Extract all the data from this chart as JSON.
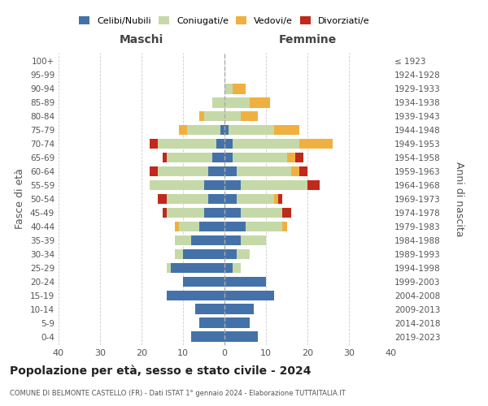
{
  "age_groups": [
    "0-4",
    "5-9",
    "10-14",
    "15-19",
    "20-24",
    "25-29",
    "30-34",
    "35-39",
    "40-44",
    "45-49",
    "50-54",
    "55-59",
    "60-64",
    "65-69",
    "70-74",
    "75-79",
    "80-84",
    "85-89",
    "90-94",
    "95-99",
    "100+"
  ],
  "birth_years": [
    "2019-2023",
    "2014-2018",
    "2009-2013",
    "2004-2008",
    "1999-2003",
    "1994-1998",
    "1989-1993",
    "1984-1988",
    "1979-1983",
    "1974-1978",
    "1969-1973",
    "1964-1968",
    "1959-1963",
    "1954-1958",
    "1949-1953",
    "1944-1948",
    "1939-1943",
    "1934-1938",
    "1929-1933",
    "1924-1928",
    "≤ 1923"
  ],
  "maschi": {
    "celibi": [
      8,
      6,
      7,
      14,
      10,
      13,
      10,
      8,
      6,
      5,
      4,
      5,
      4,
      3,
      2,
      1,
      0,
      0,
      0,
      0,
      0
    ],
    "coniugati": [
      0,
      0,
      0,
      0,
      0,
      1,
      2,
      4,
      5,
      9,
      10,
      13,
      12,
      11,
      14,
      8,
      5,
      3,
      0,
      0,
      0
    ],
    "vedovi": [
      0,
      0,
      0,
      0,
      0,
      0,
      0,
      0,
      1,
      0,
      0,
      0,
      0,
      0,
      0,
      2,
      1,
      0,
      0,
      0,
      0
    ],
    "divorziati": [
      0,
      0,
      0,
      0,
      0,
      0,
      0,
      0,
      0,
      1,
      2,
      0,
      2,
      1,
      2,
      0,
      0,
      0,
      0,
      0,
      0
    ]
  },
  "femmine": {
    "nubili": [
      8,
      6,
      7,
      12,
      10,
      2,
      3,
      4,
      5,
      4,
      3,
      4,
      3,
      2,
      2,
      1,
      0,
      0,
      0,
      0,
      0
    ],
    "coniugate": [
      0,
      0,
      0,
      0,
      0,
      2,
      3,
      6,
      9,
      10,
      9,
      16,
      13,
      13,
      16,
      11,
      4,
      6,
      2,
      0,
      0
    ],
    "vedove": [
      0,
      0,
      0,
      0,
      0,
      0,
      0,
      0,
      1,
      0,
      1,
      0,
      2,
      2,
      8,
      6,
      4,
      5,
      3,
      0,
      0
    ],
    "divorziate": [
      0,
      0,
      0,
      0,
      0,
      0,
      0,
      0,
      0,
      2,
      1,
      3,
      2,
      2,
      0,
      0,
      0,
      0,
      0,
      0,
      0
    ]
  },
  "colors": {
    "celibi": "#4472a8",
    "coniugati": "#c5d9a8",
    "vedovi": "#f0b040",
    "divorziati": "#c0291b"
  },
  "title": "Popolazione per età, sesso e stato civile - 2024",
  "subtitle": "COMUNE DI BELMONTE CASTELLO (FR) - Dati ISTAT 1° gennaio 2024 - Elaborazione TUTTAITALIA.IT",
  "xlabel_left": "Maschi",
  "xlabel_right": "Femmine",
  "ylabel_left": "Fasce di età",
  "ylabel_right": "Anni di nascita",
  "xlim": 40,
  "legend_labels": [
    "Celibi/Nubili",
    "Coniugati/e",
    "Vedovi/e",
    "Divorziati/e"
  ],
  "background_color": "#ffffff",
  "grid_color": "#cccccc"
}
